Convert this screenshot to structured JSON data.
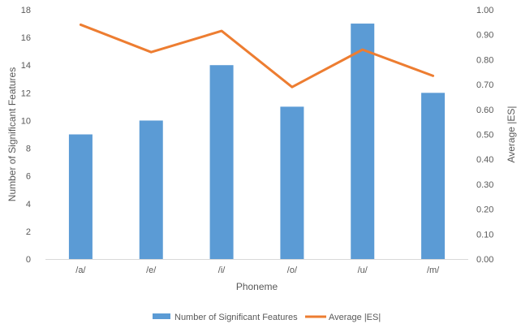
{
  "chart_data": {
    "type": "bar",
    "categories": [
      "/a/",
      "/e/",
      "/i/",
      "/o/",
      "/u/",
      "/m/"
    ],
    "series": [
      {
        "name": "Number of Significant Features",
        "kind": "bar",
        "axis": "left",
        "color": "#5B9BD5",
        "values": [
          9,
          10,
          14,
          11,
          17,
          12
        ]
      },
      {
        "name": "Average |ES|",
        "kind": "line",
        "axis": "right",
        "color": "#ED7D31",
        "values": [
          0.94,
          0.83,
          0.915,
          0.69,
          0.84,
          0.735
        ]
      }
    ],
    "xlabel": "Phoneme",
    "ylabel": "Number of Significant Features",
    "ylabel_right": "Average |ES|",
    "ylim": [
      0,
      18
    ],
    "ylim_right": [
      0,
      1.0
    ],
    "yticks": [
      0,
      2,
      4,
      6,
      8,
      10,
      12,
      14,
      16,
      18
    ],
    "yticks_right": [
      "0.00",
      "0.10",
      "0.20",
      "0.30",
      "0.40",
      "0.50",
      "0.60",
      "0.70",
      "0.80",
      "0.90",
      "1.00"
    ],
    "grid": false,
    "legend": "bottom"
  }
}
